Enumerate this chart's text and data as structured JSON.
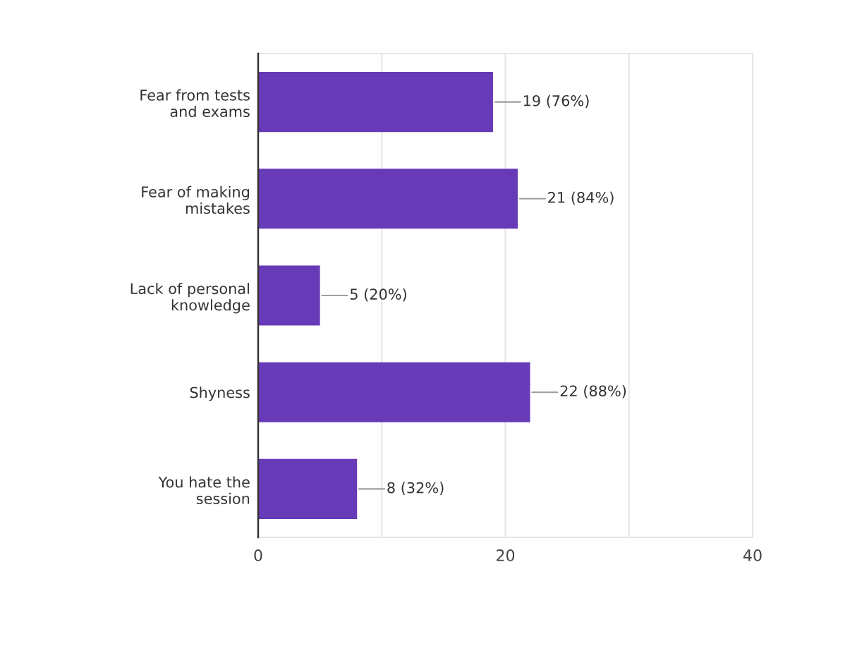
{
  "chart_data": {
    "type": "bar",
    "orientation": "horizontal",
    "categories": [
      "Fear from tests\nand exams",
      "Fear of making\nmistakes",
      "Lack of personal\nknowledge",
      "Shyness",
      "You hate the\nsession"
    ],
    "values": [
      19,
      21,
      5,
      22,
      8
    ],
    "color": "#673ab7",
    "value_labels": [
      "19 (76%)",
      "21 (84%)",
      "5 (20%)",
      "22 (88%)",
      "8 (32%)"
    ],
    "xlim": [
      0,
      40
    ],
    "xticks": [
      0,
      {
        "value": 10,
        "label": null
      },
      20,
      {
        "value": 30,
        "label": null
      },
      40
    ],
    "grid": "x",
    "legend": false
  }
}
